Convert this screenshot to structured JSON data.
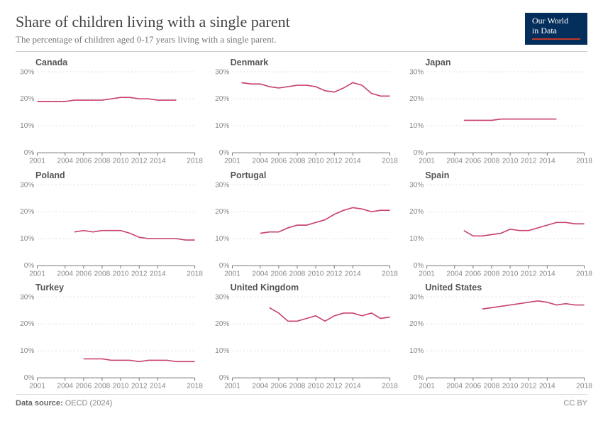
{
  "title": "Share of children living with a single parent",
  "subtitle": "The percentage of children aged 0-17 years living with a single parent.",
  "logo": {
    "line1": "Our World",
    "line2": "in Data"
  },
  "footer": {
    "source_label": "Data source:",
    "source": "OECD (2024)",
    "license": "CC BY"
  },
  "chart_style": {
    "line_color": "#c9446c",
    "grid_color": "#dddddd",
    "baseline_color": "#777777",
    "axis_text_color": "#888888",
    "background": "#ffffff",
    "y_ticks": [
      0,
      10,
      20,
      30
    ],
    "y_tick_labels": [
      "0%",
      "10%",
      "20%",
      "30%"
    ],
    "x_domain": [
      2001,
      2018
    ],
    "y_domain": [
      0,
      30
    ],
    "x_ticks": [
      2001,
      2004,
      2006,
      2008,
      2010,
      2012,
      2014,
      2018
    ],
    "line_width": 1.6,
    "grid_dash": "2 3",
    "panel_title_fontsize": 12.5,
    "axis_label_fontsize": 10
  },
  "panels": [
    {
      "name": "Canada",
      "series": [
        [
          2001,
          19
        ],
        [
          2002,
          19
        ],
        [
          2003,
          19
        ],
        [
          2004,
          19
        ],
        [
          2005,
          19.5
        ],
        [
          2006,
          19.5
        ],
        [
          2007,
          19.5
        ],
        [
          2008,
          19.5
        ],
        [
          2009,
          20
        ],
        [
          2010,
          20.5
        ],
        [
          2011,
          20.5
        ],
        [
          2012,
          20
        ],
        [
          2013,
          20
        ],
        [
          2014,
          19.5
        ],
        [
          2015,
          19.5
        ],
        [
          2016,
          19.5
        ]
      ]
    },
    {
      "name": "Denmark",
      "series": [
        [
          2002,
          26
        ],
        [
          2003,
          25.5
        ],
        [
          2004,
          25.5
        ],
        [
          2005,
          24.5
        ],
        [
          2006,
          24
        ],
        [
          2007,
          24.5
        ],
        [
          2008,
          25
        ],
        [
          2009,
          25
        ],
        [
          2010,
          24.5
        ],
        [
          2011,
          23
        ],
        [
          2012,
          22.5
        ],
        [
          2013,
          24
        ],
        [
          2014,
          26
        ],
        [
          2015,
          25
        ],
        [
          2016,
          22
        ],
        [
          2017,
          21
        ],
        [
          2018,
          21
        ]
      ]
    },
    {
      "name": "Japan",
      "series": [
        [
          2005,
          12
        ],
        [
          2006,
          12
        ],
        [
          2007,
          12
        ],
        [
          2008,
          12
        ],
        [
          2009,
          12.5
        ],
        [
          2010,
          12.5
        ],
        [
          2011,
          12.5
        ],
        [
          2012,
          12.5
        ],
        [
          2013,
          12.5
        ],
        [
          2014,
          12.5
        ],
        [
          2015,
          12.5
        ]
      ]
    },
    {
      "name": "Poland",
      "series": [
        [
          2005,
          12.5
        ],
        [
          2006,
          13
        ],
        [
          2007,
          12.5
        ],
        [
          2008,
          13
        ],
        [
          2009,
          13
        ],
        [
          2010,
          13
        ],
        [
          2011,
          12
        ],
        [
          2012,
          10.5
        ],
        [
          2013,
          10
        ],
        [
          2014,
          10
        ],
        [
          2015,
          10
        ],
        [
          2016,
          10
        ],
        [
          2017,
          9.5
        ],
        [
          2018,
          9.5
        ]
      ]
    },
    {
      "name": "Portugal",
      "series": [
        [
          2004,
          12
        ],
        [
          2005,
          12.5
        ],
        [
          2006,
          12.5
        ],
        [
          2007,
          14
        ],
        [
          2008,
          15
        ],
        [
          2009,
          15
        ],
        [
          2010,
          16
        ],
        [
          2011,
          17
        ],
        [
          2012,
          19
        ],
        [
          2013,
          20.5
        ],
        [
          2014,
          21.5
        ],
        [
          2015,
          21
        ],
        [
          2016,
          20
        ],
        [
          2017,
          20.5
        ],
        [
          2018,
          20.5
        ]
      ]
    },
    {
      "name": "Spain",
      "series": [
        [
          2005,
          13
        ],
        [
          2006,
          11
        ],
        [
          2007,
          11
        ],
        [
          2008,
          11.5
        ],
        [
          2009,
          12
        ],
        [
          2010,
          13.5
        ],
        [
          2011,
          13
        ],
        [
          2012,
          13
        ],
        [
          2013,
          14
        ],
        [
          2014,
          15
        ],
        [
          2015,
          16
        ],
        [
          2016,
          16
        ],
        [
          2017,
          15.5
        ],
        [
          2018,
          15.5
        ]
      ]
    },
    {
      "name": "Turkey",
      "series": [
        [
          2006,
          7
        ],
        [
          2007,
          7
        ],
        [
          2008,
          7
        ],
        [
          2009,
          6.5
        ],
        [
          2010,
          6.5
        ],
        [
          2011,
          6.5
        ],
        [
          2012,
          6
        ],
        [
          2013,
          6.5
        ],
        [
          2014,
          6.5
        ],
        [
          2015,
          6.5
        ],
        [
          2016,
          6
        ],
        [
          2017,
          6
        ],
        [
          2018,
          6
        ]
      ]
    },
    {
      "name": "United Kingdom",
      "series": [
        [
          2005,
          26
        ],
        [
          2006,
          24
        ],
        [
          2007,
          21
        ],
        [
          2008,
          21
        ],
        [
          2009,
          22
        ],
        [
          2010,
          23
        ],
        [
          2011,
          21
        ],
        [
          2012,
          23
        ],
        [
          2013,
          24
        ],
        [
          2014,
          24
        ],
        [
          2015,
          23
        ],
        [
          2016,
          24
        ],
        [
          2017,
          22
        ],
        [
          2018,
          22.5
        ]
      ]
    },
    {
      "name": "United States",
      "series": [
        [
          2007,
          25.5
        ],
        [
          2008,
          26
        ],
        [
          2009,
          26.5
        ],
        [
          2010,
          27
        ],
        [
          2011,
          27.5
        ],
        [
          2012,
          28
        ],
        [
          2013,
          28.5
        ],
        [
          2014,
          28
        ],
        [
          2015,
          27
        ],
        [
          2016,
          27.5
        ],
        [
          2017,
          27
        ],
        [
          2018,
          27
        ]
      ]
    }
  ]
}
